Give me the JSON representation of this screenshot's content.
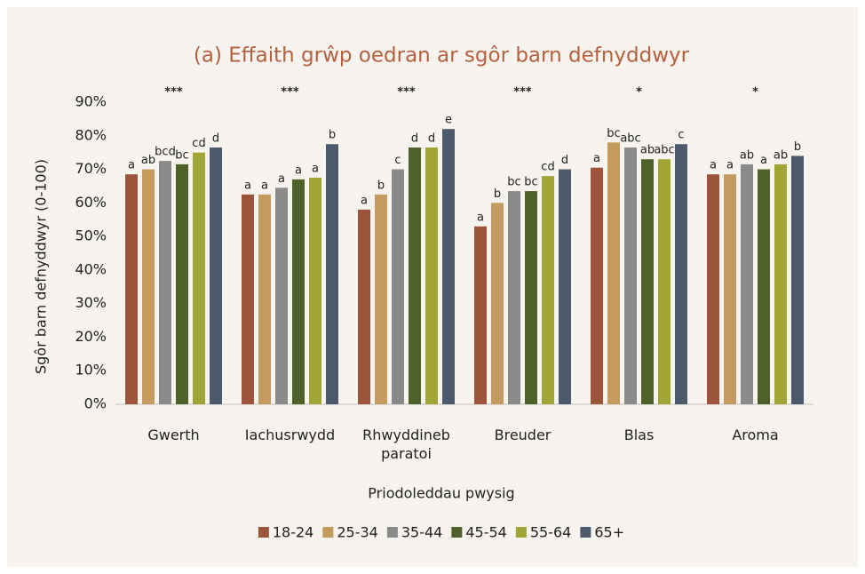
{
  "chart_data": {
    "type": "bar",
    "title": "(a) Effaith grŵp oedran ar sgôr barn defnyddwyr",
    "xlabel": "Priodoleddau pwysig",
    "ylabel": "Sgôr barn defnyddwyr (0-100)",
    "categories": [
      "Gwerth",
      "Iachusrwydd",
      "Rhwyddineb paratoi",
      "Breuder",
      "Blas",
      "Aroma"
    ],
    "significance": [
      "***",
      "***",
      "***",
      "***",
      "*",
      "*"
    ],
    "series": [
      {
        "name": "18-24",
        "color": "#9c553a",
        "values": [
          68.5,
          62.5,
          58,
          53,
          70.5,
          68.5
        ],
        "letters": [
          "a",
          "a",
          "a",
          "a",
          "a",
          "a"
        ]
      },
      {
        "name": "25-34",
        "color": "#c49a5e",
        "values": [
          70,
          62.5,
          62.5,
          60,
          78,
          68.5
        ],
        "letters": [
          "ab",
          "a",
          "b",
          "b",
          "bc",
          "a"
        ]
      },
      {
        "name": "35-44",
        "color": "#8a8a8a",
        "values": [
          72.5,
          64.5,
          70,
          63.5,
          76.5,
          71.5
        ],
        "letters": [
          "bcd",
          "a",
          "c",
          "bc",
          "abc",
          "ab"
        ]
      },
      {
        "name": "45-54",
        "color": "#4e6128",
        "values": [
          71.5,
          67,
          76.5,
          63.5,
          73,
          70
        ],
        "letters": [
          "bc",
          "a",
          "d",
          "bc",
          "ab",
          "a"
        ]
      },
      {
        "name": "55-64",
        "color": "#a0a535",
        "values": [
          75,
          67.5,
          76.5,
          68,
          73,
          71.5
        ],
        "letters": [
          "cd",
          "a",
          "d",
          "cd",
          "abc",
          "ab"
        ]
      },
      {
        "name": "65+",
        "color": "#4d5a6b",
        "values": [
          76.5,
          77.5,
          82,
          70,
          77.5,
          74
        ],
        "letters": [
          "d",
          "b",
          "e",
          "d",
          "c",
          "b"
        ]
      }
    ],
    "ylim": [
      0,
      90
    ],
    "yticks": [
      {
        "value": 0,
        "label": "0%"
      },
      {
        "value": 10,
        "label": "10%"
      },
      {
        "value": 20,
        "label": "20%"
      },
      {
        "value": 30,
        "label": "30%"
      },
      {
        "value": 40,
        "label": "40%"
      },
      {
        "value": 50,
        "label": "50%"
      },
      {
        "value": 60,
        "label": "60%"
      },
      {
        "value": 70,
        "label": "70%"
      },
      {
        "value": 80,
        "label": "80%"
      },
      {
        "value": 90,
        "label": "90%"
      }
    ],
    "grid": false,
    "legend": "bottom"
  }
}
